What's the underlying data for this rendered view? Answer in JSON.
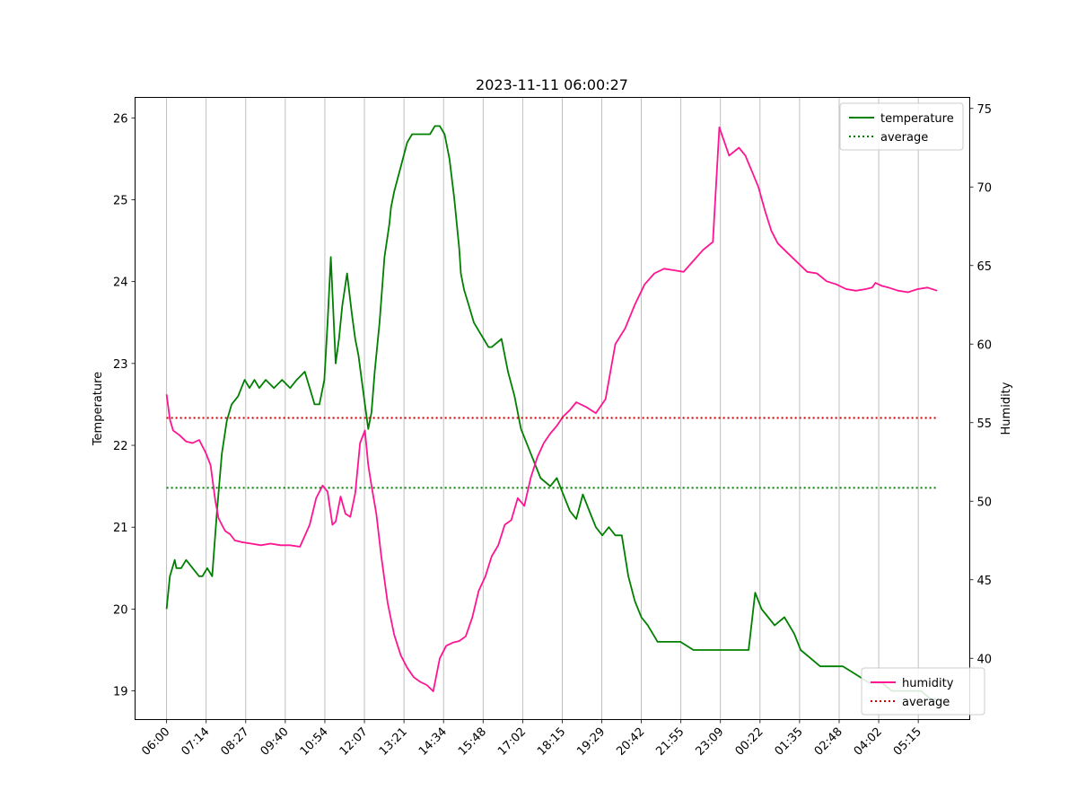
{
  "chart_data": {
    "type": "line",
    "title": "2023-11-11 06:00:27",
    "xlabel": "",
    "ylabel_left": "Temperature",
    "ylabel_right": "Humidity",
    "x_ticks": [
      "06:00",
      "07:14",
      "08:27",
      "09:40",
      "10:54",
      "12:07",
      "13:21",
      "14:34",
      "15:48",
      "17:02",
      "18:15",
      "19:29",
      "20:42",
      "21:55",
      "23:09",
      "00:22",
      "01:35",
      "02:48",
      "04:02",
      "05:15"
    ],
    "x_range_hours": [
      -0.97,
      24.7
    ],
    "left_ylim": [
      18.65,
      26.25
    ],
    "left_yticks": [
      19,
      20,
      21,
      22,
      23,
      24,
      25,
      26
    ],
    "right_ylim": [
      36.1,
      75.7
    ],
    "right_yticks": [
      40,
      45,
      50,
      55,
      60,
      65,
      70,
      75
    ],
    "grid": "x",
    "series": [
      {
        "name": "temperature",
        "axis": "left",
        "color": "#008000",
        "x_hours": [
          0,
          0.1,
          0.25,
          0.3,
          0.45,
          0.6,
          0.8,
          1.0,
          1.1,
          1.25,
          1.4,
          1.55,
          1.7,
          1.85,
          2.0,
          2.2,
          2.4,
          2.55,
          2.7,
          2.85,
          3.05,
          3.3,
          3.55,
          3.8,
          4.0,
          4.25,
          4.4,
          4.55,
          4.7,
          4.85,
          4.95,
          5.05,
          5.2,
          5.3,
          5.4,
          5.55,
          5.7,
          5.8,
          5.9,
          6.0,
          6.1,
          6.2,
          6.3,
          6.4,
          6.55,
          6.7,
          6.85,
          6.9,
          7.0,
          7.2,
          7.4,
          7.55,
          7.7,
          7.8,
          7.9,
          8.1,
          8.25,
          8.4,
          8.55,
          8.7,
          8.85,
          9.0,
          9.05,
          9.15,
          9.3,
          9.45,
          9.6,
          9.75,
          9.9,
          10.0,
          10.3,
          10.5,
          10.7,
          10.9,
          11.2,
          11.5,
          11.8,
          12.0,
          12.2,
          12.4,
          12.6,
          12.8,
          13.0,
          13.2,
          13.4,
          13.6,
          13.8,
          14.0,
          14.2,
          14.4,
          14.6,
          14.8,
          15.1,
          15.4,
          15.8,
          16.2,
          16.6,
          17.0,
          17.4,
          17.7,
          17.9,
          18.1,
          18.3,
          18.5,
          18.7,
          19.0,
          19.3,
          19.5,
          19.8,
          20.1,
          20.4,
          20.8,
          21.2,
          21.6,
          21.85,
          22.0,
          22.3,
          22.6,
          22.9,
          23.2,
          23.5,
          23.7
        ],
        "values": [
          20.0,
          20.4,
          20.6,
          20.5,
          20.5,
          20.6,
          20.5,
          20.4,
          20.4,
          20.5,
          20.4,
          21.2,
          21.9,
          22.3,
          22.5,
          22.6,
          22.8,
          22.7,
          22.8,
          22.7,
          22.8,
          22.7,
          22.8,
          22.7,
          22.8,
          22.9,
          22.7,
          22.5,
          22.5,
          22.8,
          23.5,
          24.3,
          23.0,
          23.3,
          23.7,
          24.1,
          23.6,
          23.3,
          23.1,
          22.8,
          22.5,
          22.2,
          22.4,
          22.9,
          23.5,
          24.3,
          24.7,
          24.9,
          25.1,
          25.4,
          25.7,
          25.8,
          25.8,
          25.8,
          25.8,
          25.8,
          25.9,
          25.9,
          25.8,
          25.5,
          25.0,
          24.4,
          24.1,
          23.9,
          23.7,
          23.5,
          23.4,
          23.3,
          23.2,
          23.2,
          23.3,
          22.9,
          22.6,
          22.2,
          21.9,
          21.6,
          21.5,
          21.6,
          21.4,
          21.2,
          21.1,
          21.4,
          21.2,
          21.0,
          20.9,
          21.0,
          20.9,
          20.9,
          20.4,
          20.1,
          19.9,
          19.8,
          19.6,
          19.6,
          19.6,
          19.5,
          19.5,
          19.5,
          19.5,
          19.5,
          19.5,
          20.2,
          20.0,
          19.9,
          19.8,
          19.9,
          19.7,
          19.5,
          19.4,
          19.3,
          19.3,
          19.3,
          19.2,
          19.1,
          19.1,
          19.1,
          19.0,
          19.0,
          19.0,
          19.0,
          18.9,
          18.9
        ]
      },
      {
        "name": "average",
        "axis": "left",
        "color": "#008000",
        "style": "dotted",
        "x_hours": [
          0,
          23.7
        ],
        "values": [
          21.48,
          21.48
        ]
      },
      {
        "name": "humidity",
        "axis": "right",
        "color": "#ff1493",
        "x_hours": [
          0,
          0.1,
          0.2,
          0.4,
          0.6,
          0.8,
          1.0,
          1.2,
          1.35,
          1.5,
          1.6,
          1.7,
          1.8,
          1.95,
          2.1,
          2.3,
          2.6,
          2.9,
          3.2,
          3.5,
          3.8,
          4.1,
          4.4,
          4.6,
          4.8,
          4.95,
          5.1,
          5.2,
          5.35,
          5.5,
          5.65,
          5.8,
          5.95,
          6.1,
          6.2,
          6.3,
          6.45,
          6.6,
          6.8,
          7.0,
          7.2,
          7.4,
          7.6,
          7.8,
          8.0,
          8.2,
          8.4,
          8.6,
          8.8,
          9.0,
          9.2,
          9.4,
          9.6,
          9.8,
          10.0,
          10.2,
          10.4,
          10.6,
          10.8,
          11.0,
          11.2,
          11.4,
          11.6,
          11.8,
          12.0,
          12.2,
          12.4,
          12.6,
          12.9,
          13.2,
          13.5,
          13.8,
          14.1,
          14.4,
          14.7,
          15.0,
          15.3,
          15.6,
          15.9,
          16.2,
          16.5,
          16.8,
          17.0,
          17.3,
          17.6,
          17.8,
          17.9,
          18.0,
          18.2,
          18.4,
          18.6,
          18.8,
          19.1,
          19.4,
          19.7,
          20.0,
          20.3,
          20.6,
          20.9,
          21.2,
          21.5,
          21.7,
          21.8,
          21.9,
          22.0,
          22.2,
          22.5,
          22.8,
          23.1,
          23.4,
          23.7
        ],
        "values": [
          56.8,
          55.2,
          54.5,
          54.2,
          53.8,
          53.7,
          53.9,
          53.1,
          52.3,
          50.0,
          48.9,
          48.5,
          48.1,
          47.9,
          47.5,
          47.4,
          47.3,
          47.2,
          47.3,
          47.2,
          47.2,
          47.1,
          48.5,
          50.2,
          51.0,
          50.6,
          48.5,
          48.7,
          50.3,
          49.2,
          49.0,
          50.5,
          53.7,
          54.5,
          52.3,
          51.0,
          49.2,
          46.5,
          43.5,
          41.5,
          40.2,
          39.4,
          38.8,
          38.5,
          38.3,
          37.9,
          40.0,
          40.8,
          41.0,
          41.1,
          41.4,
          42.6,
          44.3,
          45.2,
          46.5,
          47.2,
          48.5,
          48.8,
          50.2,
          49.7,
          51.5,
          52.8,
          53.7,
          54.3,
          54.8,
          55.4,
          55.8,
          56.3,
          56.0,
          55.6,
          56.5,
          60.0,
          61.0,
          62.5,
          63.8,
          64.5,
          64.8,
          64.7,
          64.6,
          65.3,
          66.0,
          66.5,
          73.8,
          72.0,
          72.5,
          72.0,
          71.5,
          71.0,
          70.0,
          68.5,
          67.2,
          66.4,
          65.8,
          65.2,
          64.6,
          64.5,
          64.0,
          63.8,
          63.5,
          63.4,
          63.5,
          63.6,
          63.9,
          63.8,
          63.7,
          63.6,
          63.4,
          63.3,
          63.5,
          63.6,
          63.4
        ]
      },
      {
        "name": "average",
        "axis": "right",
        "color": "#cc0000",
        "style": "dotted",
        "x_hours": [
          0,
          23.7
        ],
        "values": [
          55.3,
          55.3
        ]
      }
    ],
    "legend_top": {
      "position": "top-right",
      "entries": [
        {
          "label": "temperature",
          "color": "#008000",
          "style": "solid"
        },
        {
          "label": "average",
          "color": "#008000",
          "style": "dotted"
        }
      ]
    },
    "legend_bottom": {
      "position": "bottom-right",
      "entries": [
        {
          "label": "humidity",
          "color": "#ff1493",
          "style": "solid"
        },
        {
          "label": "average",
          "color": "#cc0000",
          "style": "dotted"
        }
      ]
    }
  }
}
